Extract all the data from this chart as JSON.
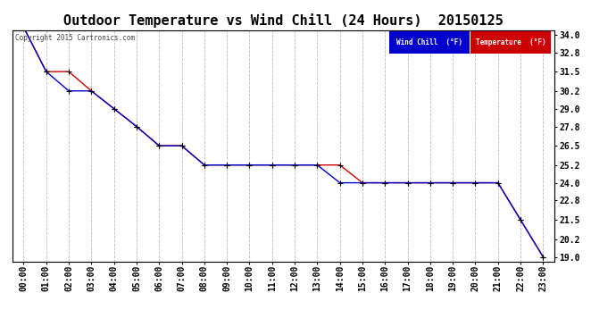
{
  "title": "Outdoor Temperature vs Wind Chill (24 Hours)  20150125",
  "copyright": "Copyright 2015 Cartronics.com",
  "x_labels": [
    "00:00",
    "01:00",
    "02:00",
    "03:00",
    "04:00",
    "05:00",
    "06:00",
    "07:00",
    "08:00",
    "09:00",
    "10:00",
    "11:00",
    "12:00",
    "13:00",
    "14:00",
    "15:00",
    "16:00",
    "17:00",
    "18:00",
    "19:00",
    "20:00",
    "21:00",
    "22:00",
    "23:00"
  ],
  "temperature": [
    34.5,
    31.5,
    31.5,
    30.2,
    29.0,
    27.8,
    26.5,
    26.5,
    25.2,
    25.2,
    25.2,
    25.2,
    25.2,
    25.2,
    25.2,
    24.0,
    24.0,
    24.0,
    24.0,
    24.0,
    24.0,
    24.0,
    21.5,
    19.0
  ],
  "wind_chill": [
    34.5,
    31.5,
    30.2,
    30.2,
    29.0,
    27.8,
    26.5,
    26.5,
    25.2,
    25.2,
    25.2,
    25.2,
    25.2,
    25.2,
    24.0,
    24.0,
    24.0,
    24.0,
    24.0,
    24.0,
    24.0,
    24.0,
    21.5,
    19.0
  ],
  "temp_color": "#cc0000",
  "wind_chill_color": "#0000cc",
  "marker_color": "#000000",
  "ylim_min": 19.0,
  "ylim_max": 34.0,
  "yticks": [
    19.0,
    20.2,
    21.5,
    22.8,
    24.0,
    25.2,
    26.5,
    27.8,
    29.0,
    30.2,
    31.5,
    32.8,
    34.0
  ],
  "background_color": "#ffffff",
  "plot_bg_color": "#ffffff",
  "grid_color": "#bbbbbb",
  "title_fontsize": 11,
  "axis_fontsize": 7,
  "legend_wind_chill_bg": "#0000cc",
  "legend_temp_bg": "#cc0000",
  "legend_wind_chill_text": "Wind Chill  (°F)",
  "legend_temp_text": "Temperature  (°F)"
}
